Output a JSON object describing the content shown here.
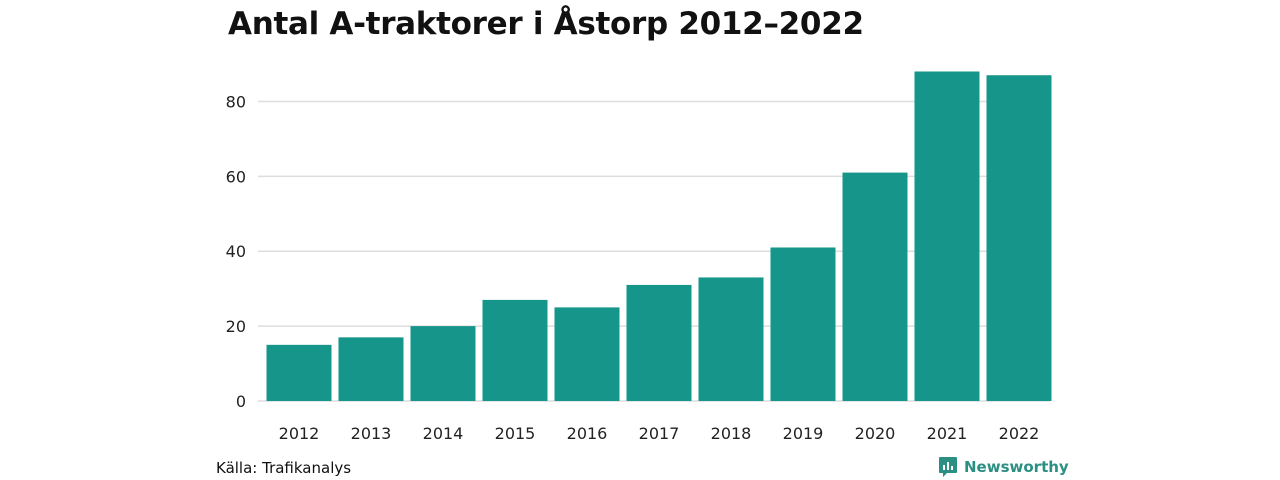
{
  "chart_data": {
    "type": "bar",
    "title": "Antal A-traktorer i Åstorp 2012–2022",
    "categories": [
      "2012",
      "2013",
      "2014",
      "2015",
      "2016",
      "2017",
      "2018",
      "2019",
      "2020",
      "2021",
      "2022"
    ],
    "values": [
      15,
      17,
      20,
      27,
      25,
      31,
      33,
      41,
      61,
      88,
      87
    ],
    "xlabel": "",
    "ylabel": "",
    "ylim": [
      0,
      90
    ],
    "yticks": [
      0,
      20,
      40,
      60,
      80
    ],
    "grid": true,
    "bar_color": "#16968a",
    "gridline_color": "#dddddd"
  },
  "source": "Källa: Trafikanalys",
  "brand": {
    "name": "Newsworthy",
    "icon": "newsworthy-logo-icon",
    "color": "#2b8f83"
  }
}
